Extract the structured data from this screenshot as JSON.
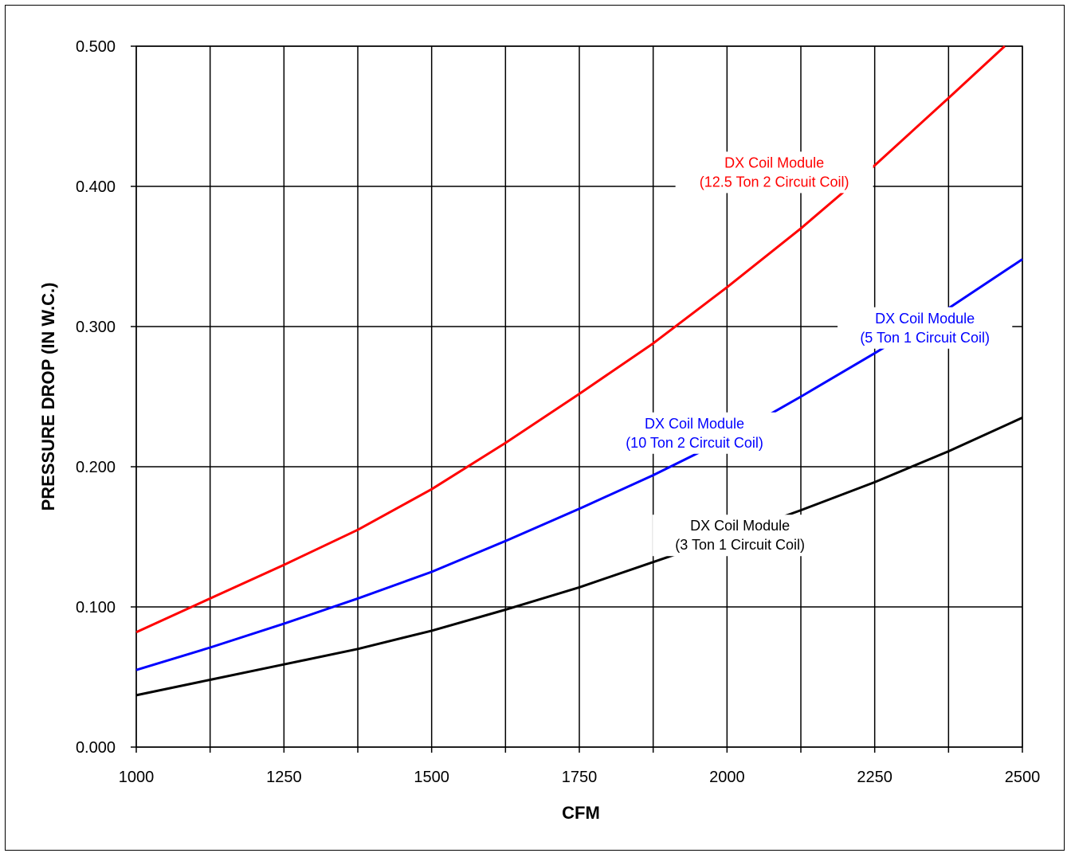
{
  "chart_data": {
    "type": "line",
    "title": "",
    "xlabel": "CFM",
    "ylabel": "PRESSURE DROP (IN W.C.)",
    "xlim": [
      1000,
      2500
    ],
    "ylim": [
      0,
      0.5
    ],
    "x_ticks": [
      "1000",
      "1250",
      "1500",
      "1750",
      "2000",
      "2250",
      "2500"
    ],
    "y_ticks": [
      "0.000",
      "0.100",
      "0.200",
      "0.300",
      "0.400",
      "0.500"
    ],
    "x_minor_step": 125,
    "grid": true,
    "legend": "inline labels",
    "series": [
      {
        "label_lines": [
          "DX Coil Module",
          "(12.5 Ton 2 Circuit Coil)"
        ],
        "color": "#ff0000",
        "label_anchor": {
          "x": 2080,
          "y": 0.41
        },
        "x": [
          1000,
          1125,
          1250,
          1375,
          1500,
          1625,
          1750,
          1875,
          2000,
          2125,
          2250,
          2375,
          2470
        ],
        "y": [
          0.082,
          0.106,
          0.13,
          0.155,
          0.184,
          0.217,
          0.252,
          0.288,
          0.328,
          0.37,
          0.415,
          0.463,
          0.5
        ]
      },
      {
        "label_lines": [
          "DX Coil Module",
          "(5 Ton 1 Circuit Coil)"
        ],
        "color": "#0000ff",
        "label_anchor": {
          "x": 2335,
          "y": 0.299
        },
        "x": [
          1000,
          1125,
          1250,
          1375,
          1500,
          1625,
          1750,
          1875,
          2000,
          2125,
          2250,
          2375,
          2500
        ],
        "y": [
          0.055,
          0.071,
          0.088,
          0.106,
          0.125,
          0.147,
          0.17,
          0.194,
          0.22,
          0.25,
          0.281,
          0.313,
          0.348
        ]
      },
      {
        "label_lines": [
          "DX Coil Module",
          "(10 Ton 2 Circuit Coil)"
        ],
        "color": "#0000ff",
        "label_anchor": {
          "x": 1945,
          "y": 0.224
        },
        "x": [],
        "y": []
      },
      {
        "label_lines": [
          "DX Coil Module",
          "(3 Ton 1 Circuit Coil)"
        ],
        "color": "#000000",
        "label_anchor": {
          "x": 2022,
          "y": 0.151
        },
        "x": [
          1000,
          1125,
          1250,
          1375,
          1500,
          1625,
          1750,
          1875,
          2000,
          2125,
          2250,
          2375,
          2500
        ],
        "y": [
          0.037,
          0.048,
          0.059,
          0.07,
          0.083,
          0.098,
          0.114,
          0.132,
          0.15,
          0.169,
          0.189,
          0.211,
          0.235
        ]
      }
    ]
  }
}
